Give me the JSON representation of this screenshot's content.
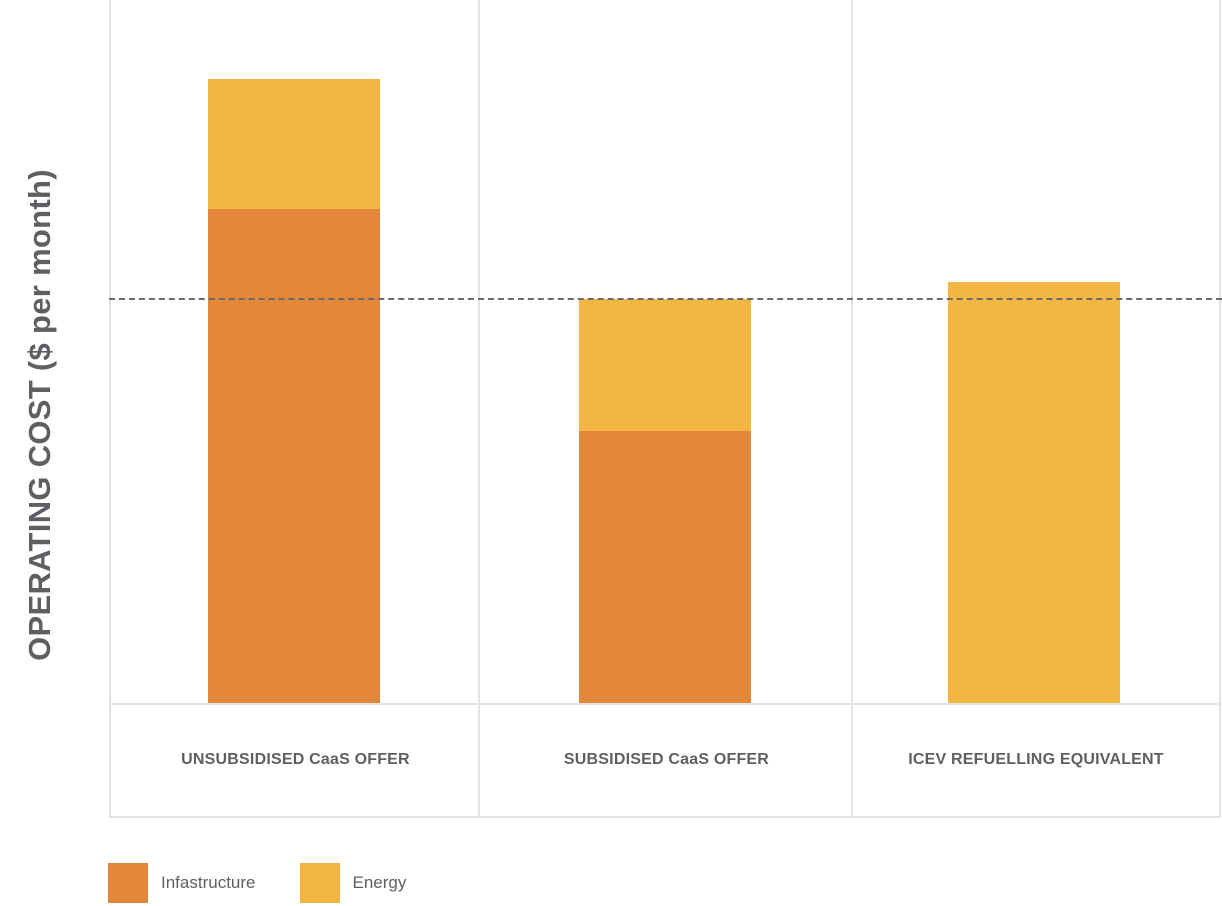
{
  "chart_data": {
    "type": "bar",
    "stacked": true,
    "title": "",
    "xlabel": "",
    "ylabel": "OPERATING COST ($ per month)",
    "categories": [
      "UNSUBSIDISED CaaS OFFER",
      "SUBSIDISED CaaS OFFER",
      "ICEV REFUELLING EQUIVALENT"
    ],
    "series": [
      {
        "name": "Infastructure",
        "color": "#e3873a",
        "values": [
          494,
          272,
          0
        ]
      },
      {
        "name": "Energy",
        "color": "#f3b643",
        "values": [
          130,
          132,
          421
        ]
      }
    ],
    "totals": [
      624,
      404,
      421
    ],
    "reference_line": {
      "style": "dashed",
      "value": 404,
      "color": "#6b6b6b"
    },
    "ylim": [
      0,
      703
    ],
    "units_note": "relative units (no axis ticks shown)",
    "grid": false,
    "legend_position": "bottom-left"
  },
  "legend": [
    {
      "label": "Infastructure",
      "color": "#e3873a"
    },
    {
      "label": "Energy",
      "color": "#f3b643"
    }
  ]
}
